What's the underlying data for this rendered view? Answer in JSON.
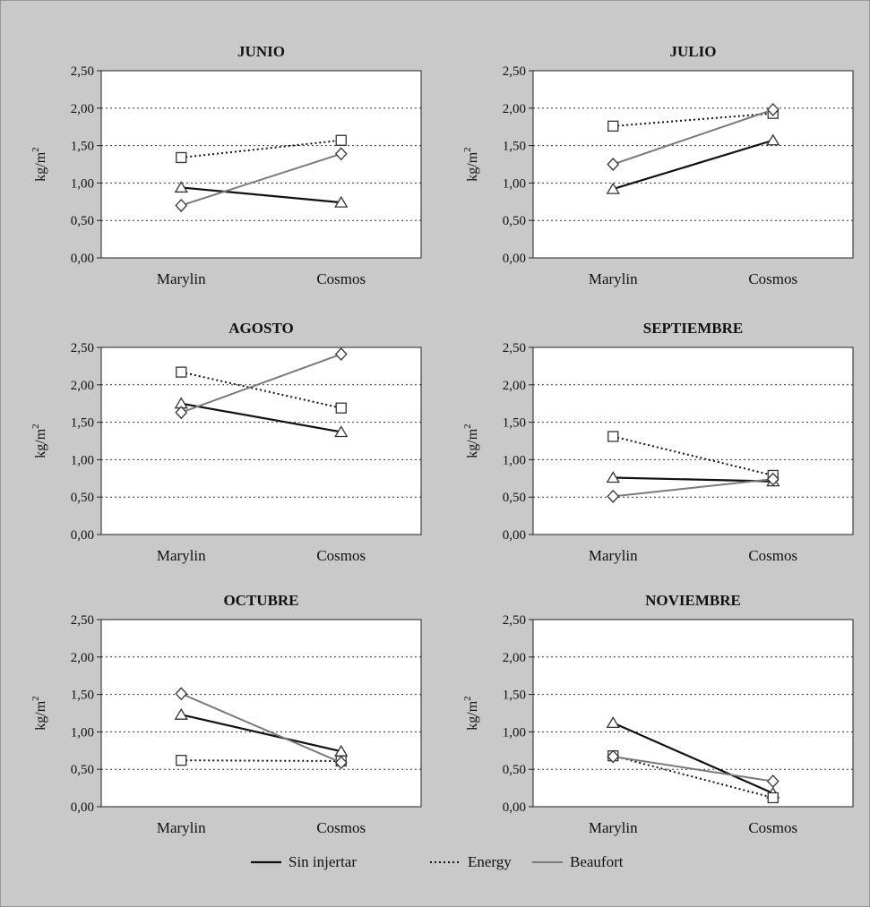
{
  "colors": {
    "background": "#c9c9c9",
    "plot_area": "#ffffff",
    "line_sin_injertar": "#111111",
    "line_energy": "#111111",
    "line_beaufort": "#7a7a7a"
  },
  "legend": {
    "placement": "bottom-center",
    "items": [
      {
        "label": "Sin injertar",
        "style": "solid",
        "marker": "triangle"
      },
      {
        "label": "Energy",
        "style": "dotted",
        "marker": "square"
      },
      {
        "label": "Beaufort",
        "style": "solid-gray",
        "marker": "diamond"
      }
    ]
  },
  "chart_data": [
    {
      "type": "line",
      "title": "JUNIO",
      "ylabel": "kg/m",
      "ylabel_sup": "2",
      "categories": [
        "Marylin",
        "Cosmos"
      ],
      "ylim": [
        0,
        2.5
      ],
      "yticks": [
        "0,00",
        "0,50",
        "1,00",
        "1,50",
        "2,00",
        "2,50"
      ],
      "grid": "horizontal-dotted",
      "series": [
        {
          "name": "Sin injertar",
          "values": [
            0.94,
            0.74
          ]
        },
        {
          "name": "Energy",
          "values": [
            1.34,
            1.57
          ]
        },
        {
          "name": "Beaufort",
          "values": [
            0.7,
            1.39
          ]
        }
      ]
    },
    {
      "type": "line",
      "title": "JULIO",
      "ylabel": "kg/m",
      "ylabel_sup": "2",
      "categories": [
        "Marylin",
        "Cosmos"
      ],
      "ylim": [
        0,
        2.5
      ],
      "yticks": [
        "0,00",
        "0,50",
        "1,00",
        "1,50",
        "2,00",
        "2,50"
      ],
      "grid": "horizontal-dotted",
      "series": [
        {
          "name": "Sin injertar",
          "values": [
            0.92,
            1.57
          ]
        },
        {
          "name": "Energy",
          "values": [
            1.76,
            1.93
          ]
        },
        {
          "name": "Beaufort",
          "values": [
            1.25,
            1.98
          ]
        }
      ]
    },
    {
      "type": "line",
      "title": "AGOSTO",
      "ylabel": "kg/m",
      "ylabel_sup": "2",
      "categories": [
        "Marylin",
        "Cosmos"
      ],
      "ylim": [
        0,
        2.5
      ],
      "yticks": [
        "0,00",
        "0,50",
        "1,00",
        "1,50",
        "2,00",
        "2,50"
      ],
      "grid": "horizontal-dotted",
      "series": [
        {
          "name": "Sin injertar",
          "values": [
            1.75,
            1.37
          ]
        },
        {
          "name": "Energy",
          "values": [
            2.17,
            1.69
          ]
        },
        {
          "name": "Beaufort",
          "values": [
            1.63,
            2.41
          ]
        }
      ]
    },
    {
      "type": "line",
      "title": "SEPTIEMBRE",
      "ylabel": "kg/m",
      "ylabel_sup": "2",
      "categories": [
        "Marylin",
        "Cosmos"
      ],
      "ylim": [
        0,
        2.5
      ],
      "yticks": [
        "0,00",
        "0,50",
        "1,00",
        "1,50",
        "2,00",
        "2,50"
      ],
      "grid": "horizontal-dotted",
      "series": [
        {
          "name": "Sin injertar",
          "values": [
            0.76,
            0.71
          ]
        },
        {
          "name": "Energy",
          "values": [
            1.31,
            0.79
          ]
        },
        {
          "name": "Beaufort",
          "values": [
            0.51,
            0.74
          ]
        }
      ]
    },
    {
      "type": "line",
      "title": "OCTUBRE",
      "ylabel": "kg/m",
      "ylabel_sup": "2",
      "categories": [
        "Marylin",
        "Cosmos"
      ],
      "ylim": [
        0,
        2.5
      ],
      "yticks": [
        "0,00",
        "0,50",
        "1,00",
        "1,50",
        "2,00",
        "2,50"
      ],
      "grid": "horizontal-dotted",
      "series": [
        {
          "name": "Sin injertar",
          "values": [
            1.23,
            0.74
          ]
        },
        {
          "name": "Energy",
          "values": [
            0.62,
            0.61
          ]
        },
        {
          "name": "Beaufort",
          "values": [
            1.51,
            0.59
          ]
        }
      ]
    },
    {
      "type": "line",
      "title": "NOVIEMBRE",
      "ylabel": "kg/m",
      "ylabel_sup": "2",
      "categories": [
        "Marylin",
        "Cosmos"
      ],
      "ylim": [
        0,
        2.5
      ],
      "yticks": [
        "0,00",
        "0,50",
        "1,00",
        "1,50",
        "2,00",
        "2,50"
      ],
      "grid": "horizontal-dotted",
      "series": [
        {
          "name": "Sin injertar",
          "values": [
            1.12,
            0.18
          ]
        },
        {
          "name": "Energy",
          "values": [
            0.68,
            0.12
          ]
        },
        {
          "name": "Beaufort",
          "values": [
            0.67,
            0.34
          ]
        }
      ]
    }
  ]
}
